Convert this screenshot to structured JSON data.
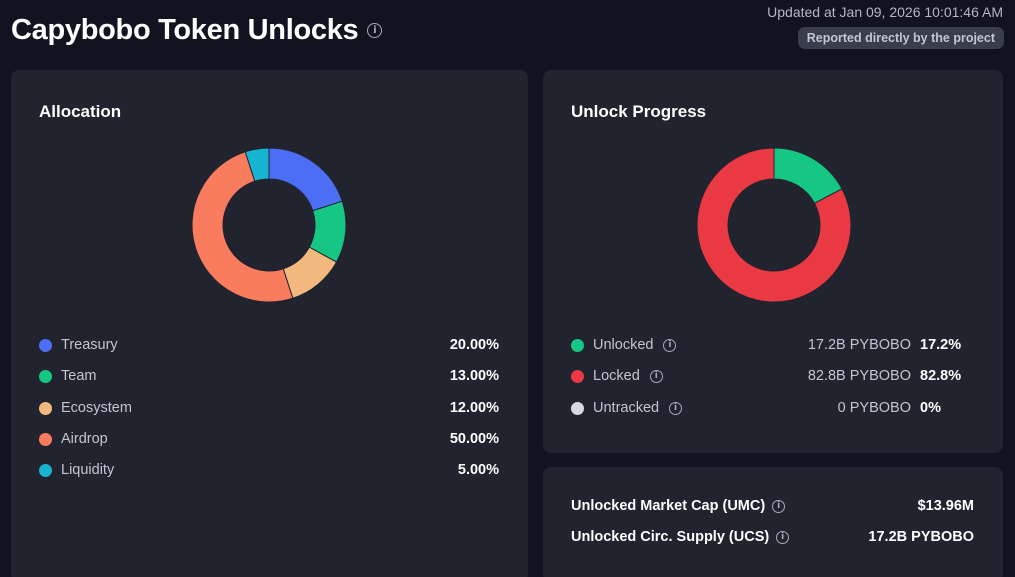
{
  "header": {
    "title": "Capybobo Token Unlocks",
    "info_icon": "info-icon",
    "updated": "Updated at Jan 09, 2026 10:01:46 AM",
    "reported_badge": "Reported directly by the project"
  },
  "allocation": {
    "title": "Allocation",
    "items": [
      {
        "label": "Treasury",
        "value": "20.00%",
        "percent": 20,
        "color": "#4c6ef5"
      },
      {
        "label": "Team",
        "value": "13.00%",
        "percent": 13,
        "color": "#16c784"
      },
      {
        "label": "Ecosystem",
        "value": "12.00%",
        "percent": 12,
        "color": "#f4b97f"
      },
      {
        "label": "Airdrop",
        "value": "50.00%",
        "percent": 50,
        "color": "#fa7c5e"
      },
      {
        "label": "Liquidity",
        "value": "5.00%",
        "percent": 5,
        "color": "#17b4d1"
      }
    ]
  },
  "unlock_progress": {
    "title": "Unlock Progress",
    "items": [
      {
        "label": "Unlocked",
        "amount": "17.2B PYBOBO",
        "value": "17.2%",
        "percent": 17.2,
        "color": "#16c784"
      },
      {
        "label": "Locked",
        "amount": "82.8B PYBOBO",
        "value": "82.8%",
        "percent": 82.8,
        "color": "#ea3943"
      },
      {
        "label": "Untracked",
        "amount": "0 PYBOBO",
        "value": "0%",
        "percent": 0,
        "color": "#d5d9e2"
      }
    ]
  },
  "market": {
    "umc_label": "Unlocked Market Cap (UMC)",
    "umc_value": "$13.96M",
    "ucs_label": "Unlocked Circ. Supply (UCS)",
    "ucs_value": "17.2B PYBOBO"
  }
}
